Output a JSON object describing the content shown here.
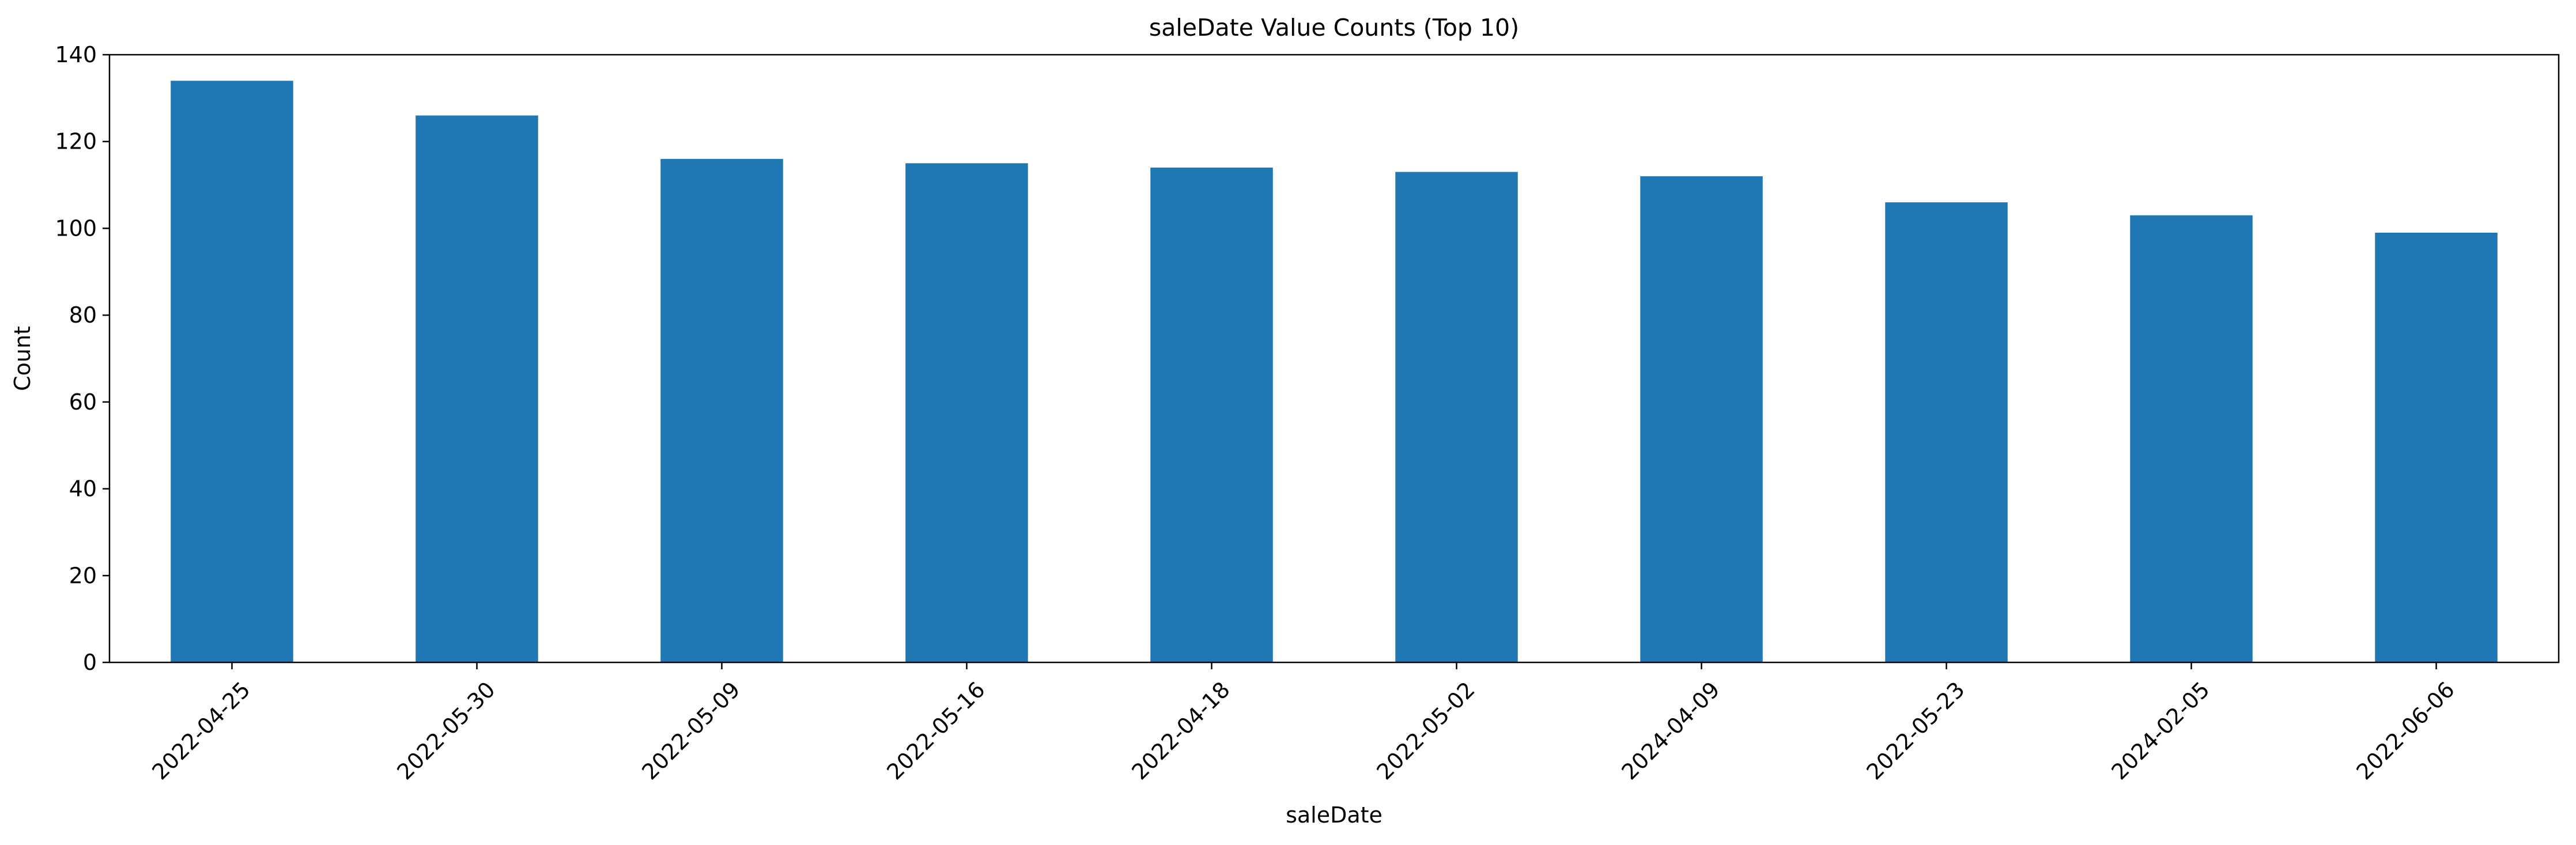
{
  "chart_data": {
    "type": "bar",
    "title": "saleDate Value Counts (Top 10)",
    "xlabel": "saleDate",
    "ylabel": "Count",
    "categories": [
      "2022-04-25",
      "2022-05-30",
      "2022-05-09",
      "2022-05-16",
      "2022-04-18",
      "2022-05-02",
      "2024-04-09",
      "2022-05-23",
      "2024-02-05",
      "2022-06-06"
    ],
    "values": [
      134,
      126,
      116,
      115,
      114,
      113,
      112,
      106,
      103,
      99
    ],
    "ylim": [
      0,
      140
    ],
    "yticks": [
      0,
      20,
      40,
      60,
      80,
      100,
      120,
      140
    ],
    "bar_color": "#1f77b4",
    "grid": false,
    "legend": "none"
  }
}
